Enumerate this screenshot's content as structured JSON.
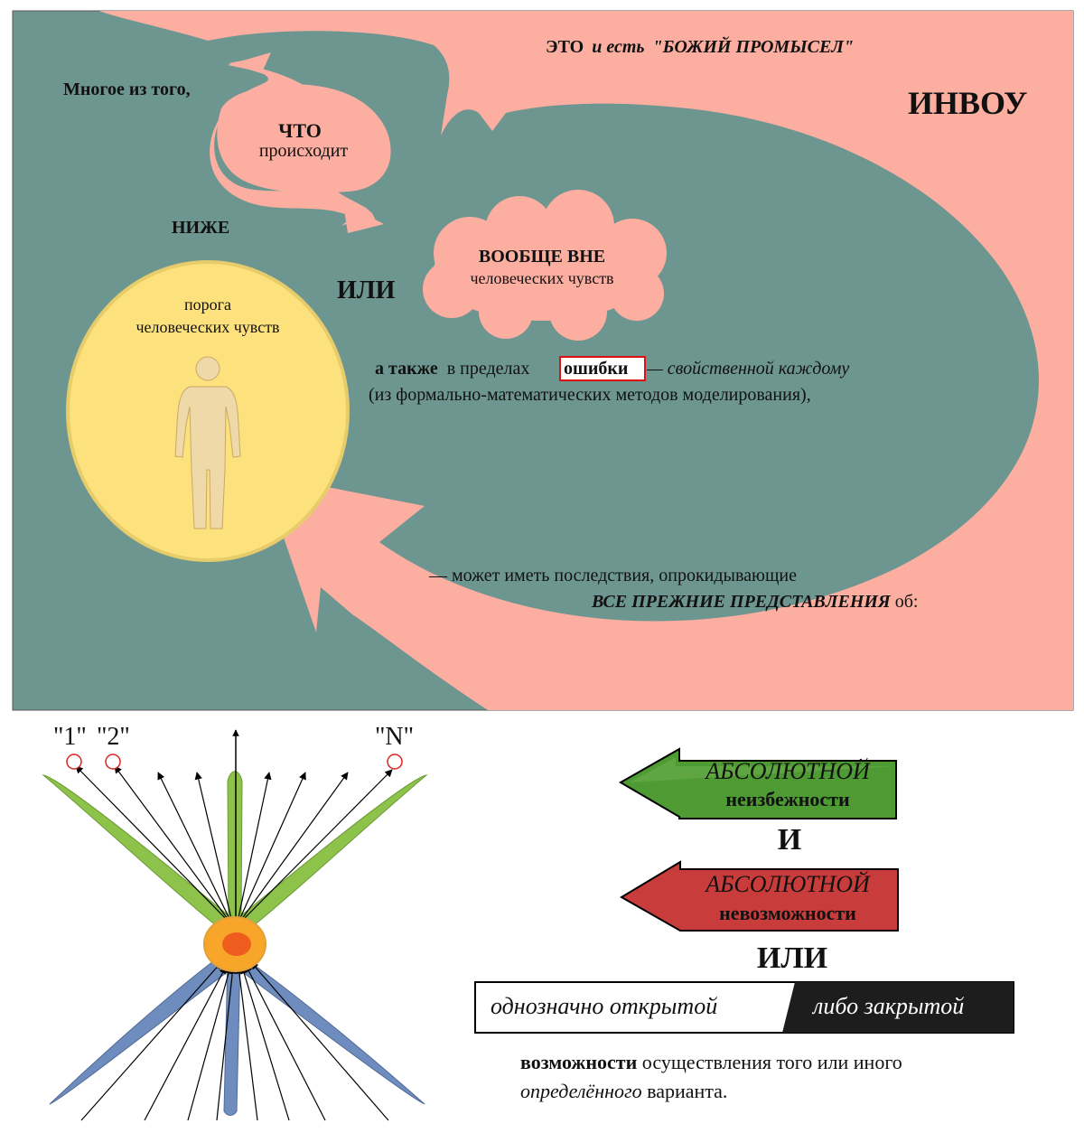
{
  "top_panel": {
    "providence": {
      "eto": "ЭТО",
      "i_est": "и есть",
      "bozhiy": "\"БОЖИЙ ПРОМЫСЕЛ\""
    },
    "invou": "ИНВОУ",
    "mnogoe": "Многое из того,",
    "chto": "ЧТО",
    "proiskhodit": "происходит",
    "nizhe": "НИЖЕ",
    "cloud_line1": "ВООБЩЕ ВНЕ",
    "cloud_line2": "человеческих чувств",
    "ili": "ИЛИ",
    "circle_line1": "порога",
    "circle_line2": "человеческих чувств",
    "also": {
      "a_takzhe": "а также",
      "v_predelakh": " в пределах ",
      "oshibki": "ошибки",
      "svoystvennoy": " — свойственной каждому",
      "line2": "(из формально-математических методов моделирования),"
    },
    "consequence_line1": "—  может иметь последствия, опрокидывающие",
    "consequence_bold": "ВСЕ ПРЕЖНИЕ ПРЕДСТАВЛЕНИЯ",
    "consequence_tail": " об:"
  },
  "bottom_left": {
    "labels": [
      "\"1\"",
      "\"2\"",
      "\"N\""
    ]
  },
  "bottom_right": {
    "green_arrow": {
      "line1": "АБСОЛЮТНОЙ",
      "line2": "неизбежности"
    },
    "i_label": "И",
    "red_arrow": {
      "line1": "АБСОЛЮТНОЙ",
      "line2": "невозможности"
    },
    "ili_label": "ИЛИ",
    "open_label": "однозначно открытой",
    "closed_label": "либо закрытой",
    "final": {
      "vozmozhnosti": "возможности",
      "rest1": " осуществления того или иного",
      "opredelennogo": "определённого",
      "rest2": " варианта."
    }
  },
  "colors": {
    "teal": "#6e9690",
    "pink": "#fcaea1",
    "yellow": "#fde17d",
    "green": "#4e9a33",
    "red": "#c93c3c",
    "leaf_green": "#8dc24b",
    "leaf_blue": "#6e8cbd"
  }
}
